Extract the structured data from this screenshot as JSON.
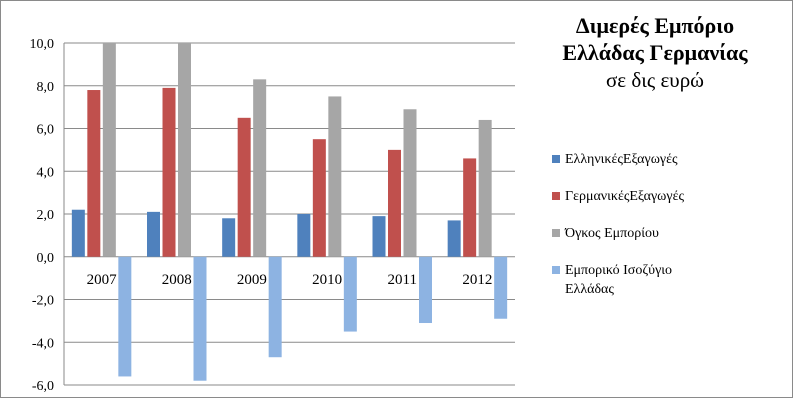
{
  "chart_data": {
    "type": "bar",
    "title": [
      "Διμερές Εμπόριο",
      "Ελλάδας Γερμανίας"
    ],
    "subtitle": "σε δις ευρώ",
    "categories": [
      "2007",
      "2008",
      "2009",
      "2010",
      "2011",
      "2012"
    ],
    "ylim": [
      -6.0,
      10.0
    ],
    "yticks": [
      "10,0",
      "8,0",
      "6,0",
      "4,0",
      "2,0",
      "0,0",
      "-2,0",
      "-4,0",
      "-6,0"
    ],
    "gridlines": true,
    "legend_position": "right",
    "series": [
      {
        "name": "ΕλληνικέςΕξαγωγές",
        "color": "#4f81bd",
        "values": [
          2.2,
          2.1,
          1.8,
          2.0,
          1.9,
          1.7
        ]
      },
      {
        "name": "ΓερμανικέςΕξαγωγές",
        "color": "#c0504d",
        "values": [
          7.8,
          7.9,
          6.5,
          5.5,
          5.0,
          4.6
        ]
      },
      {
        "name": "Όγκος Εμπορίου",
        "color": "#a6a6a6",
        "values": [
          10.0,
          10.0,
          8.3,
          7.5,
          6.9,
          6.4
        ]
      },
      {
        "name": "Εμπορικό Ισοζύγιο Ελλάδας",
        "color": "#8db3e2",
        "values": [
          -5.6,
          -5.8,
          -4.7,
          -3.5,
          -3.1,
          -2.9
        ]
      }
    ]
  }
}
